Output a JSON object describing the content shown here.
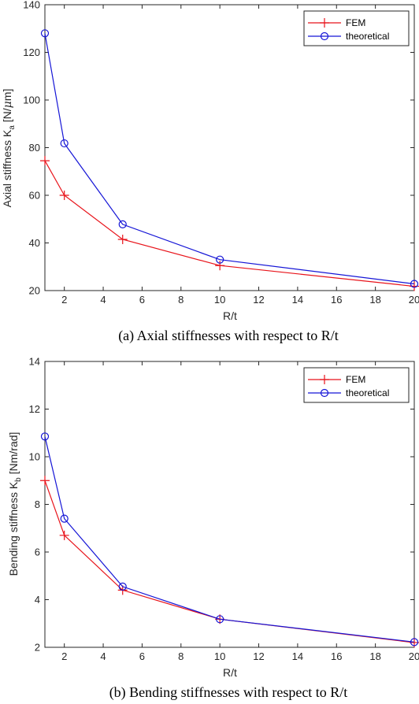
{
  "chart_data": [
    {
      "type": "line",
      "xlabel": "R/t",
      "ylabel": "Axial stiffness K",
      "ylabel_sub": "a",
      "ylabel_unit": "[N/",
      "ylabel_mu": "μ",
      "ylabel_unit_end": "m]",
      "caption": "(a) Axial stiffnesses with respect to R/t",
      "x": [
        1,
        2,
        5,
        10,
        20
      ],
      "xlim": [
        1,
        20
      ],
      "ylim": [
        20,
        140
      ],
      "xticks": [
        2,
        4,
        6,
        8,
        10,
        12,
        14,
        16,
        18,
        20
      ],
      "yticks": [
        20,
        40,
        60,
        80,
        100,
        120,
        140
      ],
      "grid": false,
      "legend_position": "top-right",
      "series": [
        {
          "name": "FEM",
          "color": "#e8131a",
          "marker": "plus",
          "values": [
            74.5,
            60,
            41.5,
            30.5,
            21.8
          ]
        },
        {
          "name": "theoretical",
          "color": "#1515d6",
          "marker": "circle",
          "values": [
            128,
            81.8,
            47.8,
            33,
            22.8
          ]
        }
      ]
    },
    {
      "type": "line",
      "xlabel": "R/t",
      "ylabel": "Bending stiffness K",
      "ylabel_sub": "b",
      "ylabel_unit": "[Nm/rad]",
      "caption": "(b) Bending stiffnesses with respect to R/t",
      "x": [
        1,
        2,
        5,
        10,
        20
      ],
      "xlim": [
        1,
        20
      ],
      "ylim": [
        2,
        14
      ],
      "xticks": [
        2,
        4,
        6,
        8,
        10,
        12,
        14,
        16,
        18,
        20
      ],
      "yticks": [
        2,
        4,
        6,
        8,
        10,
        12,
        14
      ],
      "grid": false,
      "legend_position": "top-right",
      "series": [
        {
          "name": "FEM",
          "color": "#e8131a",
          "marker": "plus",
          "values": [
            9.0,
            6.7,
            4.4,
            3.18,
            2.2
          ]
        },
        {
          "name": "theoretical",
          "color": "#1515d6",
          "marker": "circle",
          "values": [
            10.85,
            7.4,
            4.55,
            3.18,
            2.22
          ]
        }
      ]
    }
  ]
}
